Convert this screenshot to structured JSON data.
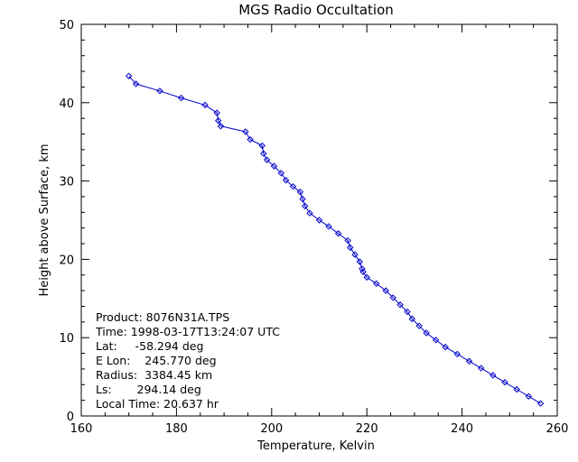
{
  "chart_data": {
    "type": "line",
    "title": "MGS Radio Occultation",
    "xlabel": "Temperature, Kelvin",
    "ylabel": "Height above Surface, km",
    "xlim": [
      160,
      260
    ],
    "ylim": [
      0,
      50
    ],
    "xticks": [
      160,
      180,
      200,
      220,
      240,
      260
    ],
    "yticks": [
      0,
      10,
      20,
      30,
      40,
      50
    ],
    "grid": false,
    "line_color": "#0000cc",
    "marker": "diamond",
    "series": [
      {
        "x": [
          170.0,
          171.5,
          176.5,
          181.0,
          186.0,
          188.5,
          188.8,
          189.3,
          194.5,
          195.5,
          198.0,
          198.3,
          199.0,
          200.5,
          202.0,
          203.0,
          204.5,
          206.0,
          206.5,
          207.0,
          208.0,
          210.0,
          212.0,
          214.0,
          216.0,
          216.5,
          217.5,
          218.5,
          219.0,
          219.2,
          220.0,
          222.0,
          224.0,
          225.5,
          227.0,
          228.5,
          229.5,
          231.0,
          232.5,
          234.5,
          236.5,
          239.0,
          241.5,
          244.0,
          246.5,
          249.0,
          251.5,
          254.0,
          256.5
        ],
        "y": [
          43.4,
          42.4,
          41.5,
          40.6,
          39.7,
          38.7,
          37.7,
          37.0,
          36.3,
          35.3,
          34.5,
          33.5,
          32.7,
          31.9,
          31.0,
          30.1,
          29.3,
          28.6,
          27.7,
          26.8,
          25.9,
          25.0,
          24.2,
          23.3,
          22.4,
          21.5,
          20.6,
          19.7,
          18.8,
          18.4,
          17.7,
          16.9,
          16.0,
          15.1,
          14.2,
          13.3,
          12.4,
          11.5,
          10.6,
          9.7,
          8.8,
          7.9,
          7.0,
          6.1,
          5.2,
          4.3,
          3.4,
          2.5,
          1.6
        ]
      }
    ],
    "annotations": [
      "Product: 8076N31A.TPS",
      "Time: 1998-03-17T13:24:07 UTC",
      "Lat:     -58.294 deg",
      "E Lon:    245.770 deg",
      "Radius:  3384.45 km",
      "Ls:       294.14 deg",
      "Local Time: 20.637 hr"
    ]
  }
}
